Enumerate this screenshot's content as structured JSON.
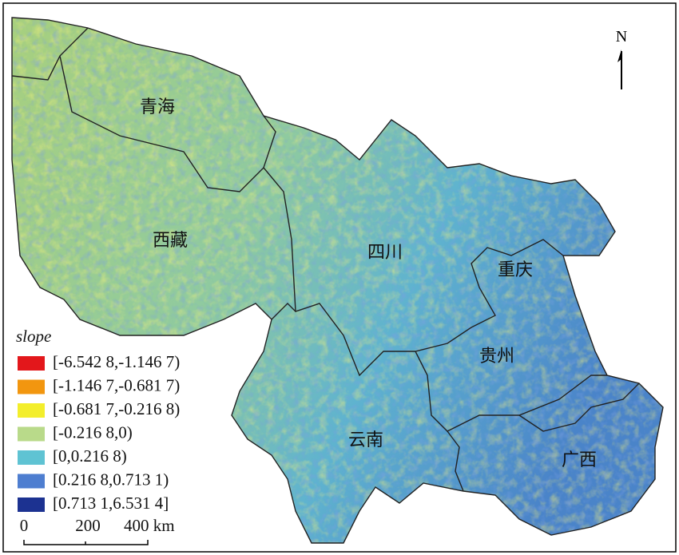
{
  "map": {
    "regions": [
      "青海",
      "西藏",
      "四川",
      "重庆",
      "贵州",
      "云南",
      "广西"
    ],
    "north": "N",
    "legend": {
      "title": "slope",
      "items": [
        {
          "label": "[-6.542 8,-1.146 7)",
          "color": "#e3171b"
        },
        {
          "label": "[-1.146 7,-0.681 7)",
          "color": "#f2960f"
        },
        {
          "label": "[-0.681 7,-0.216 8)",
          "color": "#f3ee2c"
        },
        {
          "label": "[-0.216 8,0)",
          "color": "#b9da8a"
        },
        {
          "label": "[0,0.216 8)",
          "color": "#5fc3d3"
        },
        {
          "label": "[0.216 8,0.713 1)",
          "color": "#4e7ed0"
        },
        {
          "label": "[0.713 1,6.531 4]",
          "color": "#1c3291"
        }
      ]
    },
    "scale_bar": {
      "labels": [
        "0",
        "200",
        "400 km"
      ]
    }
  }
}
